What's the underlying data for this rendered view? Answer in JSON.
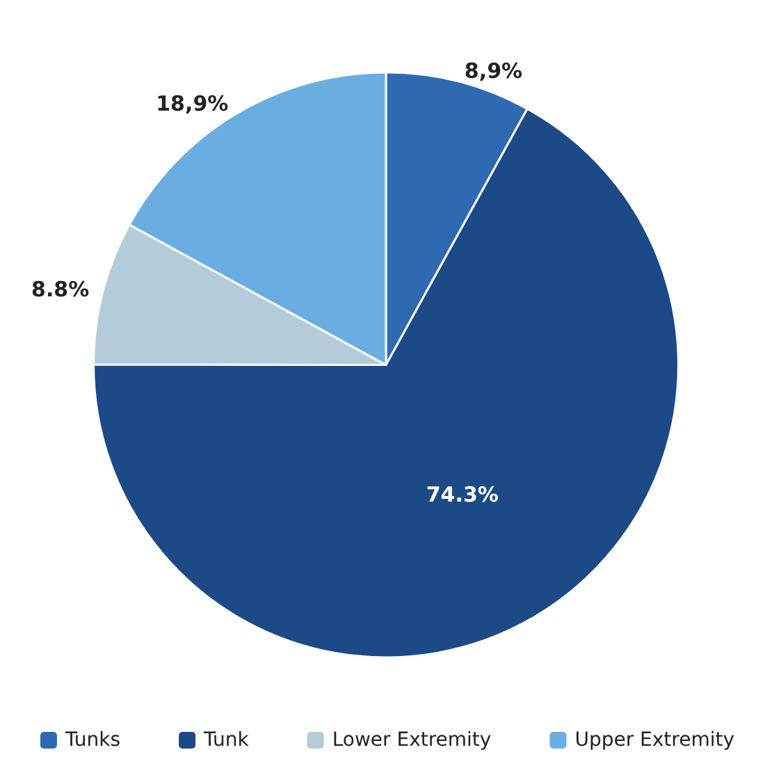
{
  "chart_data": {
    "type": "pie",
    "categories": [
      "Tunks",
      "Tunk",
      "Lower Extremity",
      "Upper Extremity"
    ],
    "values": [
      8.9,
      74.3,
      8.8,
      18.9
    ],
    "value_labels": [
      "8,9%",
      "74.3%",
      "8.8%",
      "18,9%"
    ],
    "colors": [
      "#2f69b2",
      "#1b4a86",
      "#b4cbda",
      "#6aaee1"
    ],
    "legend": "bottom"
  }
}
